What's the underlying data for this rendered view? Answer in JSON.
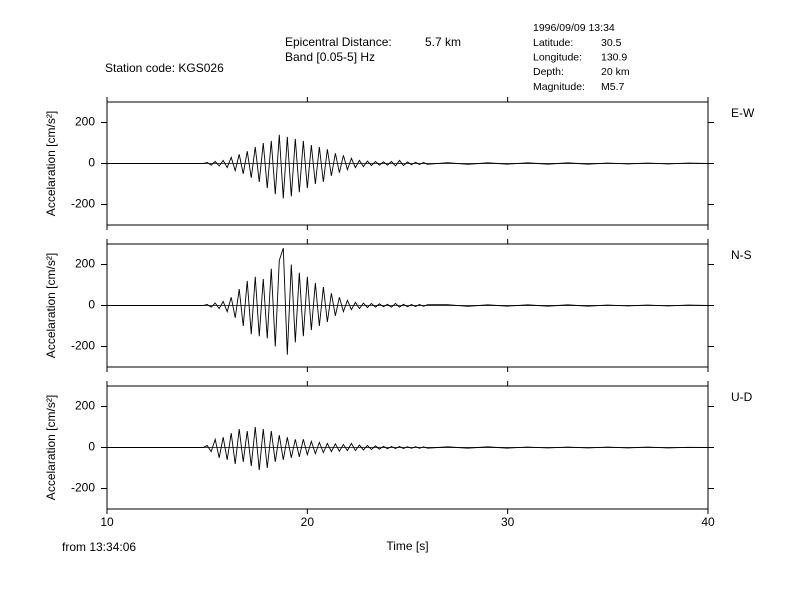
{
  "header": {
    "epicentral_label": "Epicentral Distance:",
    "epicentral_value": "5.7 km",
    "band": "Band [0.05-5] Hz",
    "station": "Station code: KGS026",
    "date": "1996/09/09 13:34",
    "info": [
      {
        "label": "Latitude:",
        "value": "30.5"
      },
      {
        "label": "Longitude:",
        "value": "130.9"
      },
      {
        "label": "Depth:",
        "value": "20 km"
      },
      {
        "label": "Magnitude:",
        "value": "M5.7"
      }
    ],
    "start": "from 13:34:06"
  },
  "chart_data": [
    {
      "type": "line",
      "channel": "E-W",
      "ylabel": "Accelaration [cm/s²]",
      "xlim": [
        10,
        40
      ],
      "xticks": [
        10,
        20,
        30,
        40
      ],
      "ylim": [
        -300,
        300
      ],
      "yticks": [
        -200,
        0,
        200
      ],
      "color": "#000000",
      "x": [
        10,
        14.8,
        15,
        15.2,
        15.4,
        15.6,
        15.8,
        16,
        16.2,
        16.4,
        16.6,
        16.8,
        17,
        17.2,
        17.4,
        17.6,
        17.8,
        18,
        18.2,
        18.4,
        18.6,
        18.8,
        19,
        19.2,
        19.4,
        19.6,
        19.8,
        20,
        20.2,
        20.4,
        20.6,
        20.8,
        21,
        21.2,
        21.4,
        21.6,
        21.8,
        22,
        22.2,
        22.4,
        22.6,
        22.8,
        23,
        23.2,
        23.4,
        23.6,
        23.8,
        24,
        24.2,
        24.4,
        24.6,
        24.8,
        25,
        25.2,
        25.4,
        25.6,
        25.8,
        26,
        27,
        28,
        29,
        30,
        31,
        32,
        33,
        34,
        35,
        36,
        37,
        38,
        39,
        40
      ],
      "values": [
        0,
        0,
        5,
        -8,
        10,
        -12,
        15,
        -20,
        30,
        -35,
        45,
        -50,
        60,
        -70,
        80,
        -90,
        100,
        -120,
        110,
        -150,
        140,
        -170,
        130,
        -160,
        120,
        -140,
        110,
        -120,
        90,
        -100,
        80,
        -90,
        70,
        -60,
        50,
        -45,
        40,
        -30,
        25,
        -20,
        15,
        -15,
        12,
        -10,
        10,
        -8,
        8,
        -8,
        10,
        -12,
        15,
        -10,
        8,
        -6,
        6,
        -5,
        5,
        -4,
        4,
        -4,
        3,
        -3,
        3,
        -3,
        3,
        -3,
        2,
        -2,
        2,
        -2,
        2,
        0
      ]
    },
    {
      "type": "line",
      "channel": "N-S",
      "ylabel": "Accelaration [cm/s²]",
      "xlim": [
        10,
        40
      ],
      "xticks": [
        10,
        20,
        30,
        40
      ],
      "ylim": [
        -300,
        300
      ],
      "yticks": [
        -200,
        0,
        200
      ],
      "color": "#000000",
      "x": [
        10,
        14.8,
        15,
        15.2,
        15.4,
        15.6,
        15.8,
        16,
        16.2,
        16.4,
        16.6,
        16.8,
        17,
        17.2,
        17.4,
        17.6,
        17.8,
        18,
        18.2,
        18.4,
        18.6,
        18.8,
        19,
        19.2,
        19.4,
        19.6,
        19.8,
        20,
        20.2,
        20.4,
        20.6,
        20.8,
        21,
        21.2,
        21.4,
        21.6,
        21.8,
        22,
        22.2,
        22.4,
        22.6,
        22.8,
        23,
        23.2,
        23.4,
        23.6,
        23.8,
        24,
        24.2,
        24.4,
        24.6,
        24.8,
        25,
        25.2,
        25.4,
        25.6,
        25.8,
        26,
        27,
        28,
        29,
        30,
        31,
        32,
        33,
        34,
        35,
        36,
        37,
        38,
        39,
        40
      ],
      "values": [
        0,
        0,
        5,
        -8,
        12,
        -15,
        20,
        -30,
        40,
        -60,
        80,
        -100,
        120,
        -140,
        140,
        -150,
        130,
        -160,
        180,
        -200,
        220,
        280,
        -240,
        200,
        -180,
        160,
        -150,
        140,
        -120,
        110,
        -100,
        90,
        -80,
        60,
        -50,
        40,
        -30,
        25,
        -20,
        15,
        -15,
        12,
        -10,
        10,
        -8,
        8,
        -6,
        6,
        -8,
        10,
        -8,
        6,
        -6,
        5,
        -5,
        5,
        -4,
        4,
        4,
        -4,
        3,
        -3,
        3,
        -3,
        3,
        -3,
        2,
        -2,
        2,
        -2,
        2,
        0
      ]
    },
    {
      "type": "line",
      "channel": "U-D",
      "ylabel": "Accelaration [cm/s²]",
      "xlabel": "Time [s]",
      "xlim": [
        10,
        40
      ],
      "xticks": [
        10,
        20,
        30,
        40
      ],
      "ylim": [
        -300,
        300
      ],
      "yticks": [
        -200,
        0,
        200
      ],
      "color": "#000000",
      "x": [
        10,
        14.8,
        15,
        15.2,
        15.4,
        15.6,
        15.8,
        16,
        16.2,
        16.4,
        16.6,
        16.8,
        17,
        17.2,
        17.4,
        17.6,
        17.8,
        18,
        18.2,
        18.4,
        18.6,
        18.8,
        19,
        19.2,
        19.4,
        19.6,
        19.8,
        20,
        20.2,
        20.4,
        20.6,
        20.8,
        21,
        21.2,
        21.4,
        21.6,
        21.8,
        22,
        22.2,
        22.4,
        22.6,
        22.8,
        23,
        23.2,
        23.4,
        23.6,
        23.8,
        24,
        24.2,
        24.4,
        24.6,
        24.8,
        25,
        25.2,
        25.4,
        25.6,
        25.8,
        26,
        27,
        28,
        29,
        30,
        31,
        32,
        33,
        34,
        35,
        36,
        37,
        38,
        39,
        40
      ],
      "values": [
        0,
        0,
        10,
        -20,
        40,
        -50,
        50,
        -60,
        70,
        -80,
        90,
        -70,
        80,
        -90,
        100,
        -110,
        90,
        -100,
        80,
        -70,
        60,
        -60,
        50,
        -50,
        40,
        -45,
        40,
        -35,
        30,
        -30,
        25,
        -25,
        20,
        -20,
        18,
        -18,
        15,
        -15,
        20,
        -15,
        12,
        -12,
        10,
        -10,
        8,
        -8,
        6,
        -6,
        5,
        -5,
        5,
        -5,
        4,
        -4,
        4,
        -4,
        3,
        -3,
        3,
        -3,
        3,
        -3,
        2,
        -2,
        2,
        -2,
        2,
        -2,
        2,
        -2,
        1,
        0
      ]
    }
  ]
}
